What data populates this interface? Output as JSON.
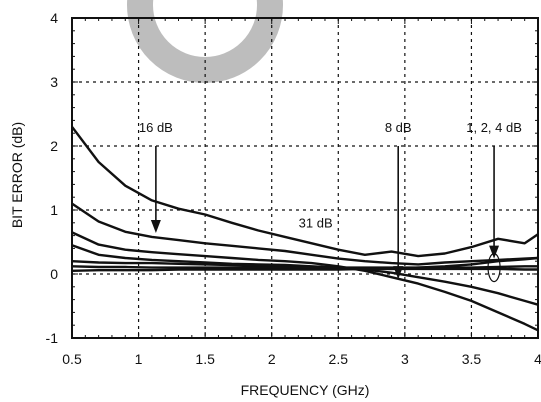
{
  "chart_data": {
    "type": "line",
    "title": "",
    "xlabel": "FREQUENCY (GHz)",
    "ylabel": "BIT ERROR (dB)",
    "xlim": [
      0.5,
      4
    ],
    "ylim": [
      -1,
      4
    ],
    "x_ticks": [
      "0.5",
      "1",
      "1.5",
      "2",
      "2.5",
      "3",
      "3.5",
      "4"
    ],
    "y_ticks": [
      "4",
      "3",
      "2",
      "1",
      "0",
      "-1"
    ],
    "grid": true,
    "line_color": "#111111",
    "watermark_color": "#bdbdbd",
    "series": [
      {
        "x": [
          0.5,
          0.7,
          0.9,
          1.1,
          1.3,
          1.5,
          1.7,
          1.9,
          2.1,
          2.3,
          2.5,
          2.7,
          2.9,
          3.1,
          3.3,
          3.5,
          3.7,
          3.9,
          4.0
        ],
        "values": [
          2.3,
          1.75,
          1.38,
          1.15,
          1.02,
          0.93,
          0.8,
          0.68,
          0.58,
          0.48,
          0.38,
          0.3,
          0.35,
          0.28,
          0.32,
          0.42,
          0.55,
          0.48,
          0.62
        ]
      },
      {
        "x": [
          0.5,
          0.7,
          0.9,
          1.1,
          1.3,
          1.5,
          1.7,
          1.9,
          2.1,
          2.3,
          2.5,
          2.7,
          2.9,
          3.1,
          3.3,
          3.5,
          3.7,
          3.9,
          4.0
        ],
        "values": [
          1.1,
          0.82,
          0.66,
          0.58,
          0.53,
          0.48,
          0.44,
          0.4,
          0.36,
          0.3,
          0.24,
          0.2,
          0.17,
          0.15,
          0.18,
          0.2,
          0.22,
          0.24,
          0.25
        ]
      },
      {
        "x": [
          0.5,
          0.7,
          0.9,
          1.1,
          1.3,
          1.5,
          1.7,
          1.9,
          2.1,
          2.3,
          2.5,
          2.7,
          2.9,
          3.1,
          3.3,
          3.5,
          3.7,
          3.9,
          4.0
        ],
        "values": [
          0.65,
          0.46,
          0.38,
          0.34,
          0.31,
          0.28,
          0.25,
          0.22,
          0.2,
          0.17,
          0.12,
          0.05,
          -0.05,
          -0.15,
          -0.28,
          -0.42,
          -0.6,
          -0.78,
          -0.88
        ]
      },
      {
        "x": [
          0.5,
          0.7,
          0.9,
          1.1,
          1.3,
          1.5,
          1.7,
          1.9,
          2.1,
          2.3,
          2.5,
          2.7,
          2.9,
          3.1,
          3.3,
          3.5,
          3.7,
          3.9,
          4.0
        ],
        "values": [
          0.45,
          0.3,
          0.25,
          0.22,
          0.2,
          0.18,
          0.16,
          0.15,
          0.14,
          0.12,
          0.1,
          0.07,
          0.02,
          -0.05,
          -0.12,
          -0.2,
          -0.3,
          -0.42,
          -0.48
        ]
      },
      {
        "x": [
          0.5,
          0.7,
          0.9,
          1.1,
          1.3,
          1.5,
          1.7,
          1.9,
          2.1,
          2.3,
          2.5,
          2.7,
          2.9,
          3.1,
          3.3,
          3.5,
          3.7,
          3.9,
          4.0
        ],
        "values": [
          0.2,
          0.18,
          0.17,
          0.17,
          0.16,
          0.15,
          0.14,
          0.13,
          0.12,
          0.11,
          0.1,
          0.09,
          0.08,
          0.1,
          0.12,
          0.15,
          0.2,
          0.23,
          0.25
        ]
      },
      {
        "x": [
          0.5,
          0.7,
          0.9,
          1.1,
          1.3,
          1.5,
          1.7,
          1.9,
          2.1,
          2.3,
          2.5,
          2.7,
          2.9,
          3.1,
          3.3,
          3.5,
          3.7,
          3.9,
          4.0
        ],
        "values": [
          0.12,
          0.11,
          0.11,
          0.1,
          0.1,
          0.1,
          0.1,
          0.1,
          0.1,
          0.1,
          0.1,
          0.1,
          0.1,
          0.1,
          0.1,
          0.1,
          0.11,
          0.12,
          0.12
        ]
      },
      {
        "x": [
          0.5,
          0.7,
          0.9,
          1.1,
          1.3,
          1.5,
          1.7,
          1.9,
          2.1,
          2.3,
          2.5,
          2.7,
          2.9,
          3.1,
          3.3,
          3.5,
          3.7,
          3.9,
          4.0
        ],
        "values": [
          0.05,
          0.06,
          0.06,
          0.06,
          0.07,
          0.07,
          0.07,
          0.07,
          0.07,
          0.07,
          0.07,
          0.08,
          0.08,
          0.08,
          0.08,
          0.08,
          0.08,
          0.07,
          0.07
        ]
      }
    ],
    "annotations": [
      {
        "id": "16db",
        "text": "16 dB",
        "x": 1.13,
        "y": 2.22,
        "arrow_from": [
          1.13,
          2.0
        ],
        "arrow_to": [
          1.13,
          0.64
        ]
      },
      {
        "id": "31db",
        "text": "31 dB",
        "x": 2.33,
        "y": 0.73
      },
      {
        "id": "8db",
        "text": "8 dB",
        "x": 2.95,
        "y": 2.22,
        "arrow_from": [
          2.95,
          2.0
        ],
        "arrow_to": [
          2.95,
          -0.08
        ]
      },
      {
        "id": "124db",
        "text": "1, 2, 4 dB",
        "x": 3.67,
        "y": 2.22,
        "arrow_from": [
          3.67,
          2.0
        ],
        "arrow_to": [
          3.67,
          0.24
        ]
      }
    ]
  }
}
